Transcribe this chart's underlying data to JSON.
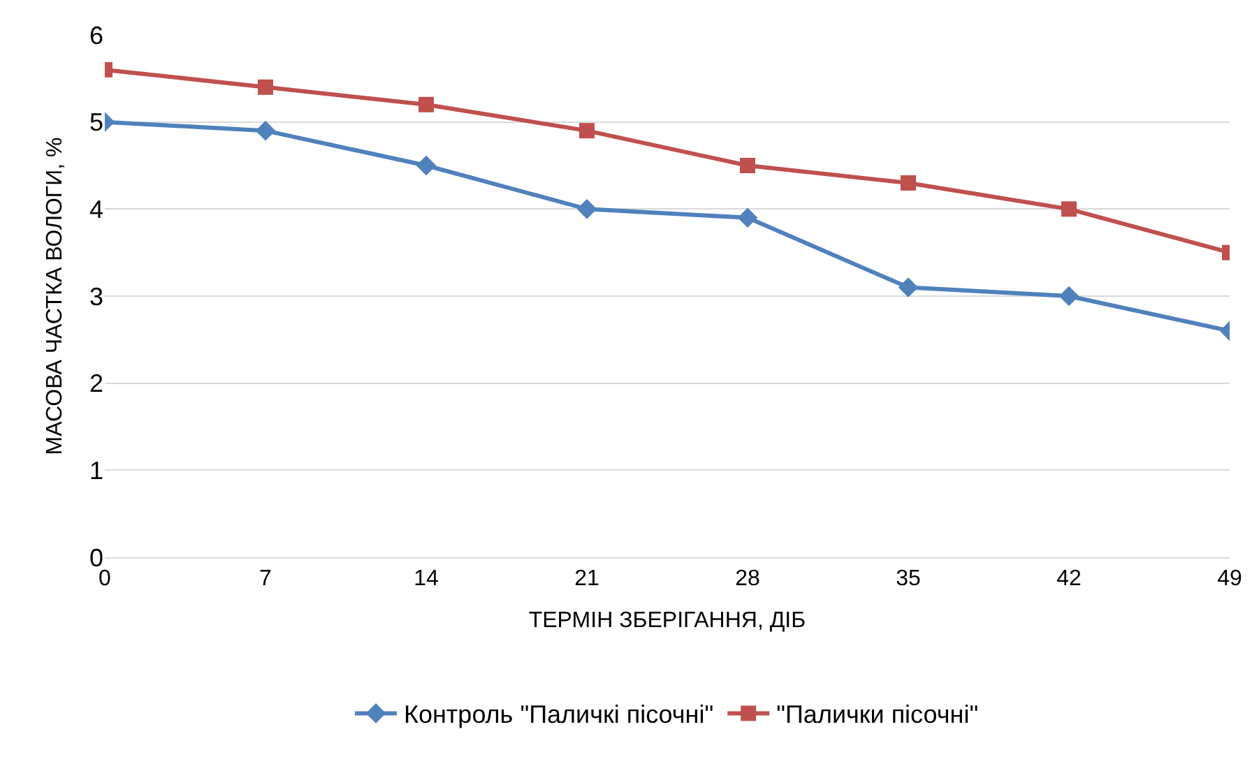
{
  "chart_data": {
    "type": "line",
    "xlabel": "ТЕРМІН ЗБЕРІГАННЯ, ДІБ",
    "ylabel": "МАСОВА ЧАСТКА ВОЛОГИ, %",
    "categories": [
      "0",
      "7",
      "14",
      "21",
      "28",
      "35",
      "42",
      "49"
    ],
    "series": [
      {
        "name": "Контроль \"Паличкі пісочні\"",
        "color": "#4f81bd",
        "marker": "diamond",
        "values": [
          5.0,
          4.9,
          4.5,
          4.0,
          3.9,
          3.1,
          3.0,
          2.6
        ]
      },
      {
        "name": "\"Палички пісочні\"",
        "color": "#c0504d",
        "marker": "square",
        "values": [
          5.6,
          5.4,
          5.2,
          4.9,
          4.5,
          4.3,
          4.0,
          3.5
        ]
      }
    ],
    "ylim": [
      0,
      6
    ],
    "yticks": [
      0,
      1,
      2,
      3,
      4,
      5,
      6
    ],
    "grid": "y",
    "legend": "bottom",
    "line_style": "solid"
  }
}
